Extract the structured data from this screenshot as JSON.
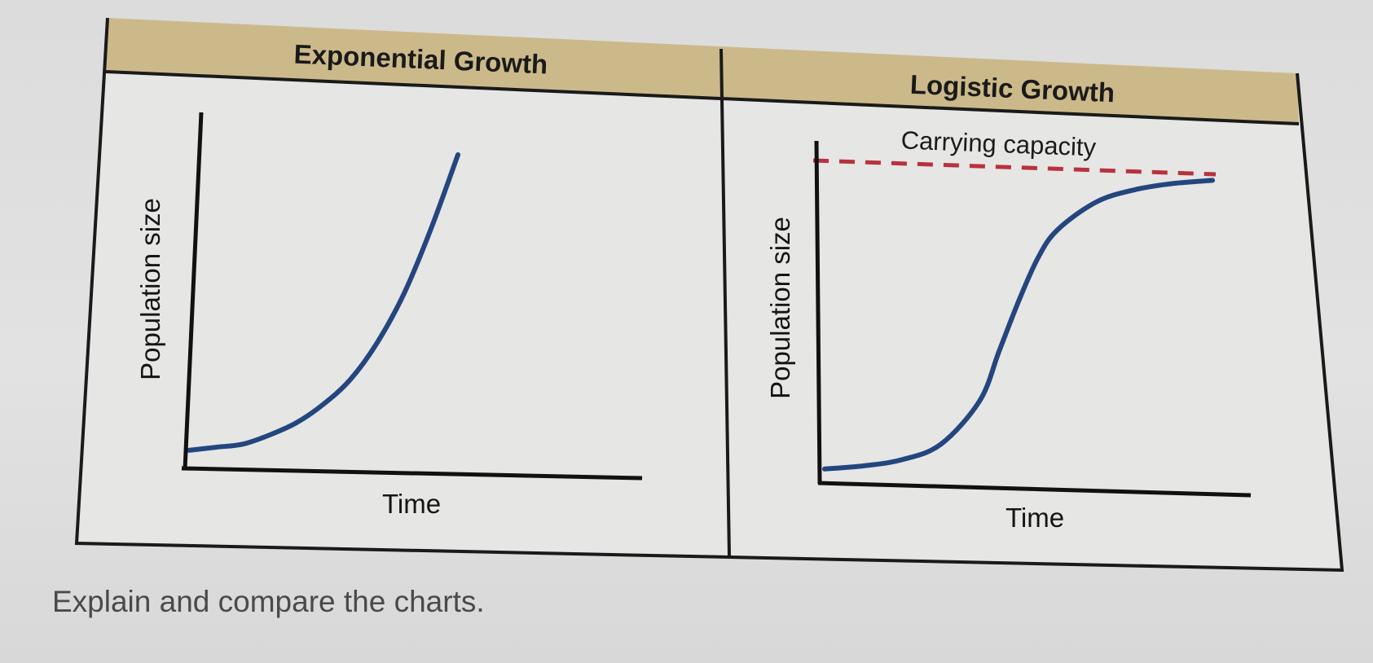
{
  "question": "Explain and compare the charts.",
  "colors": {
    "header_bg": "#ccb98a",
    "curve": "#24467f",
    "carrying_capacity_line": "#b8323c",
    "border": "#1a1a1a"
  },
  "chart_data": [
    {
      "type": "line",
      "title": "Exponential Growth",
      "xlabel": "Time",
      "ylabel": "Population size",
      "tick_labels": "none",
      "grid": false,
      "series": [
        {
          "x": [
            0,
            0.1,
            0.2,
            0.3,
            0.4,
            0.5,
            0.6,
            0.7,
            0.8,
            0.9,
            1.0
          ],
          "values": [
            0.04,
            0.05,
            0.06,
            0.09,
            0.13,
            0.19,
            0.27,
            0.39,
            0.55,
            0.76,
            1.0
          ]
        }
      ]
    },
    {
      "type": "line",
      "title": "Logistic Growth",
      "xlabel": "Time",
      "ylabel": "Population size",
      "tick_labels": "none",
      "grid": false,
      "annotations": [
        {
          "text": "Carrying capacity",
          "y": 1.0,
          "style": "dashed"
        }
      ],
      "series": [
        {
          "x": [
            0,
            0.1,
            0.2,
            0.3,
            0.4,
            0.45,
            0.5,
            0.55,
            0.6,
            0.7,
            0.8,
            0.9,
            1.0
          ],
          "values": [
            0.04,
            0.05,
            0.07,
            0.12,
            0.26,
            0.42,
            0.58,
            0.72,
            0.81,
            0.9,
            0.94,
            0.96,
            0.97
          ]
        }
      ]
    }
  ]
}
